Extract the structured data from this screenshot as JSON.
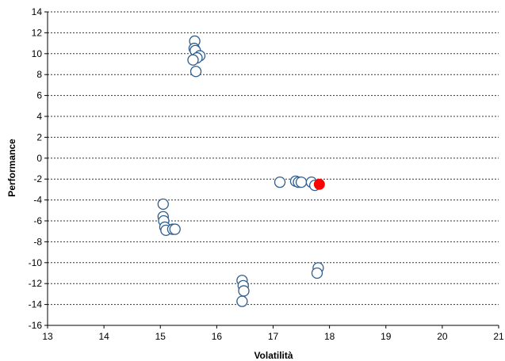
{
  "chart_data": {
    "type": "scatter",
    "title": "",
    "xlabel": "Volatilità",
    "ylabel": "Performance",
    "xlim": [
      13,
      21
    ],
    "ylim": [
      -16,
      14
    ],
    "x_ticks": [
      13,
      14,
      15,
      16,
      17,
      18,
      19,
      20,
      21
    ],
    "y_ticks": [
      -16,
      -14,
      -12,
      -10,
      -8,
      -6,
      -4,
      -2,
      0,
      2,
      4,
      6,
      8,
      10,
      12,
      14
    ],
    "grid": "horizontal dotted",
    "legend": "none",
    "colors": {
      "marker_stroke": "#2e5d8f",
      "marker_fill": "#ffffff",
      "highlight": "#ff0000",
      "grid": "#333333"
    },
    "series": [
      {
        "points": [
          [
            15.61,
            11.2
          ],
          [
            15.6,
            10.5
          ],
          [
            15.62,
            10.3
          ],
          [
            15.7,
            9.8
          ],
          [
            15.65,
            9.6
          ],
          [
            15.58,
            9.4
          ],
          [
            15.63,
            8.3
          ],
          [
            17.12,
            -2.3
          ],
          [
            17.4,
            -2.2
          ],
          [
            17.45,
            -2.3
          ],
          [
            17.5,
            -2.3
          ],
          [
            17.68,
            -2.3
          ],
          [
            17.74,
            -2.6
          ],
          [
            15.05,
            -4.4
          ],
          [
            15.05,
            -5.6
          ],
          [
            15.06,
            -6.0
          ],
          [
            15.08,
            -6.6
          ],
          [
            15.1,
            -6.9
          ],
          [
            15.22,
            -6.8
          ],
          [
            15.26,
            -6.8
          ],
          [
            16.45,
            -11.7
          ],
          [
            16.47,
            -12.2
          ],
          [
            16.48,
            -12.7
          ],
          [
            16.45,
            -13.7
          ],
          [
            17.8,
            -10.5
          ],
          [
            17.78,
            -11.0
          ]
        ]
      },
      {
        "highlight": true,
        "points": [
          [
            17.82,
            -2.5
          ]
        ]
      }
    ]
  }
}
